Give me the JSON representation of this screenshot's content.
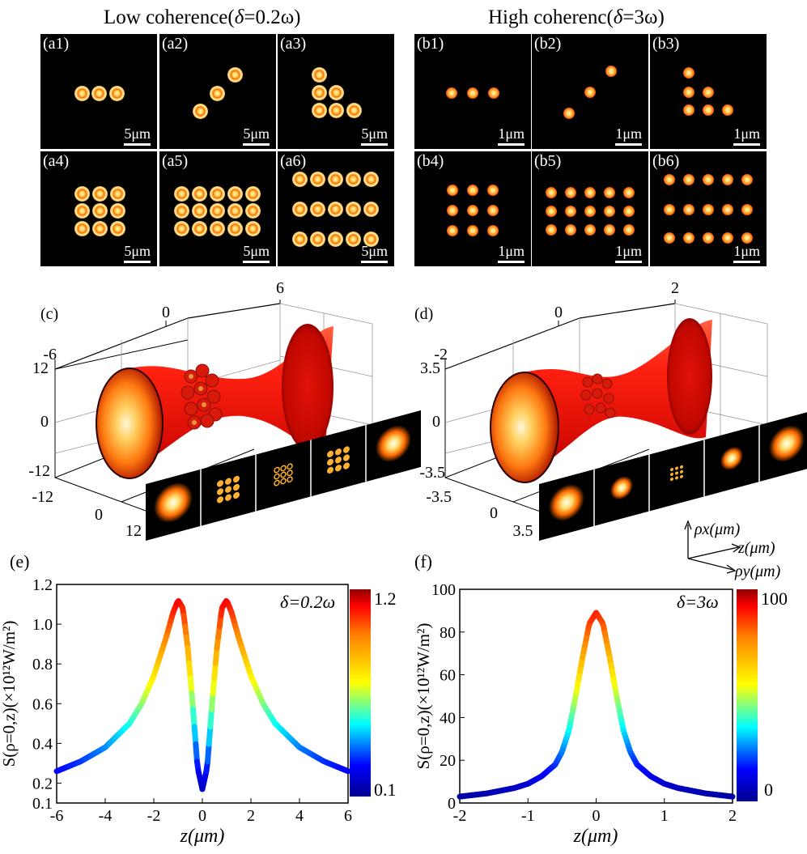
{
  "titles": {
    "low": {
      "prefix": "Low coherence(",
      "delta": "δ",
      "suffix": "=0.2ω)"
    },
    "high": {
      "prefix": "High coherenc(",
      "delta": "δ",
      "suffix": "=3ω)"
    }
  },
  "panels_a": [
    {
      "label": "(a1)",
      "scale": "5μm"
    },
    {
      "label": "(a2)",
      "scale": "5μm"
    },
    {
      "label": "(a3)",
      "scale": "5μm"
    },
    {
      "label": "(a4)",
      "scale": "5μm"
    },
    {
      "label": "(a5)",
      "scale": "5μm"
    },
    {
      "label": "(a6)",
      "scale": "5μm"
    }
  ],
  "panels_b": [
    {
      "label": "(b1)",
      "scale": "1μm"
    },
    {
      "label": "(b2)",
      "scale": "1μm"
    },
    {
      "label": "(b3)",
      "scale": "1μm"
    },
    {
      "label": "(b4)",
      "scale": "1μm"
    },
    {
      "label": "(b5)",
      "scale": "1μm"
    },
    {
      "label": "(b6)",
      "scale": "1μm"
    }
  ],
  "panel_c": {
    "label": "(c)",
    "top_ticks": [
      "-6",
      "0",
      "6"
    ],
    "left_ticks": [
      "12",
      "0",
      "-12"
    ],
    "bottom_ticks": [
      "-12",
      "0",
      "12"
    ],
    "slices": [
      "z=-6",
      "z=-1",
      "z=0",
      "z=1",
      "z=6"
    ]
  },
  "panel_d": {
    "label": "(d)",
    "top_ticks": [
      "-2",
      "0",
      "2"
    ],
    "left_ticks": [
      "3.5",
      "0",
      "-3.5"
    ],
    "bottom_ticks": [
      "-3.5",
      "0",
      "3.5"
    ],
    "slices": [
      "z=-2",
      "z=-1",
      "z=0",
      "z=1",
      "z=2"
    ],
    "axes": {
      "rho_x": "ρx(μm)",
      "z": "z(μm)",
      "rho_y": "ρy(μm)"
    }
  },
  "chart_data": [
    {
      "type": "line",
      "label": "(e)",
      "annotation": "δ=0.2ω",
      "xlabel": "z(μm)",
      "ylabel": "S(ρ=0,z)(×10¹²W/m²)",
      "xlim": [
        -6,
        6
      ],
      "ylim": [
        0.1,
        1.2
      ],
      "xticks": [
        -6,
        -4,
        -2,
        0,
        2,
        4,
        6
      ],
      "yticks": [
        0.1,
        0.2,
        0.4,
        0.6,
        0.8,
        1.0,
        1.2
      ],
      "colorbar": {
        "max": "1.2",
        "min": "0.1"
      },
      "x": [
        -6,
        -5,
        -4,
        -3,
        -2.5,
        -2,
        -1.5,
        -1.2,
        -1,
        -0.8,
        -0.6,
        -0.4,
        -0.2,
        0,
        0.2,
        0.4,
        0.6,
        0.8,
        1,
        1.2,
        1.5,
        2,
        2.5,
        3,
        4,
        5,
        6
      ],
      "y": [
        0.26,
        0.31,
        0.38,
        0.5,
        0.6,
        0.74,
        0.93,
        1.06,
        1.12,
        1.08,
        0.88,
        0.6,
        0.28,
        0.17,
        0.28,
        0.6,
        0.88,
        1.08,
        1.12,
        1.06,
        0.93,
        0.74,
        0.6,
        0.5,
        0.38,
        0.31,
        0.26
      ]
    },
    {
      "type": "line",
      "label": "(f)",
      "annotation": "δ=3ω",
      "xlabel": "z(μm)",
      "ylabel": "S(ρ=0,z)(×10¹²W/m²)",
      "xlim": [
        -2,
        2
      ],
      "ylim": [
        0,
        100
      ],
      "xticks": [
        -2,
        -1,
        0,
        1,
        2
      ],
      "yticks": [
        0,
        20,
        40,
        60,
        80,
        100
      ],
      "colorbar": {
        "max": "100",
        "min": "0"
      },
      "x": [
        -2,
        -1.6,
        -1.2,
        -1,
        -0.8,
        -0.6,
        -0.5,
        -0.4,
        -0.3,
        -0.2,
        -0.1,
        0,
        0.1,
        0.2,
        0.3,
        0.4,
        0.5,
        0.6,
        0.8,
        1,
        1.2,
        1.6,
        2
      ],
      "y": [
        3,
        4.5,
        7,
        9,
        12.5,
        18,
        24,
        34,
        50,
        68,
        84,
        89,
        84,
        68,
        50,
        34,
        24,
        18,
        12.5,
        9,
        7,
        4.5,
        3
      ]
    }
  ]
}
